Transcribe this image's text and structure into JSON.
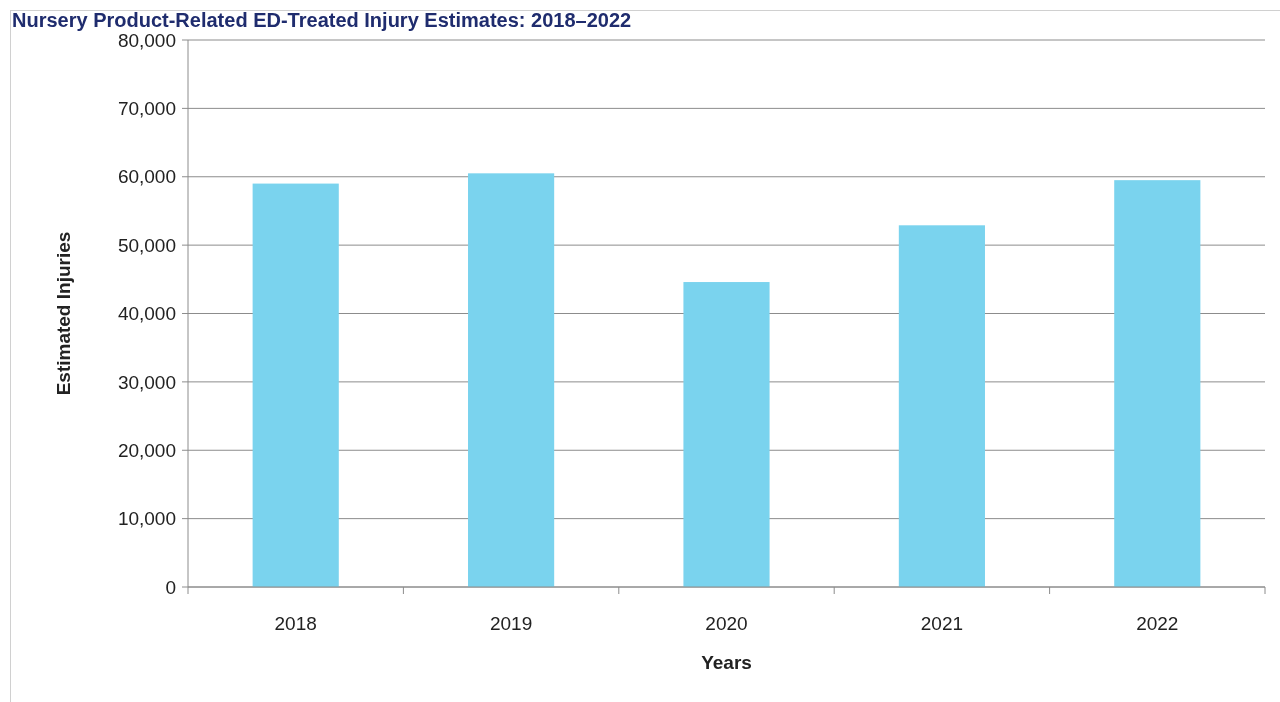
{
  "chart_data": {
    "type": "bar",
    "title": "Nursery Product-Related ED-Treated Injury Estimates: 2018–2022",
    "xlabel": "Years",
    "ylabel": "Estimated Injuries",
    "categories": [
      "2018",
      "2019",
      "2020",
      "2021",
      "2022"
    ],
    "values": [
      59000,
      60500,
      44600,
      52900,
      59500
    ],
    "color": "#7ad3ee",
    "ylim": [
      0,
      80000
    ],
    "yticks": [
      {
        "value": 0,
        "label": "0"
      },
      {
        "value": 10000,
        "label": "10,000"
      },
      {
        "value": 20000,
        "label": "20,000"
      },
      {
        "value": 30000,
        "label": "30,000"
      },
      {
        "value": 40000,
        "label": "40,000"
      },
      {
        "value": 50000,
        "label": "50,000"
      },
      {
        "value": 60000,
        "label": "60,000"
      },
      {
        "value": 70000,
        "label": "70,000"
      },
      {
        "value": 80000,
        "label": "80,000"
      }
    ],
    "grid": "y"
  }
}
